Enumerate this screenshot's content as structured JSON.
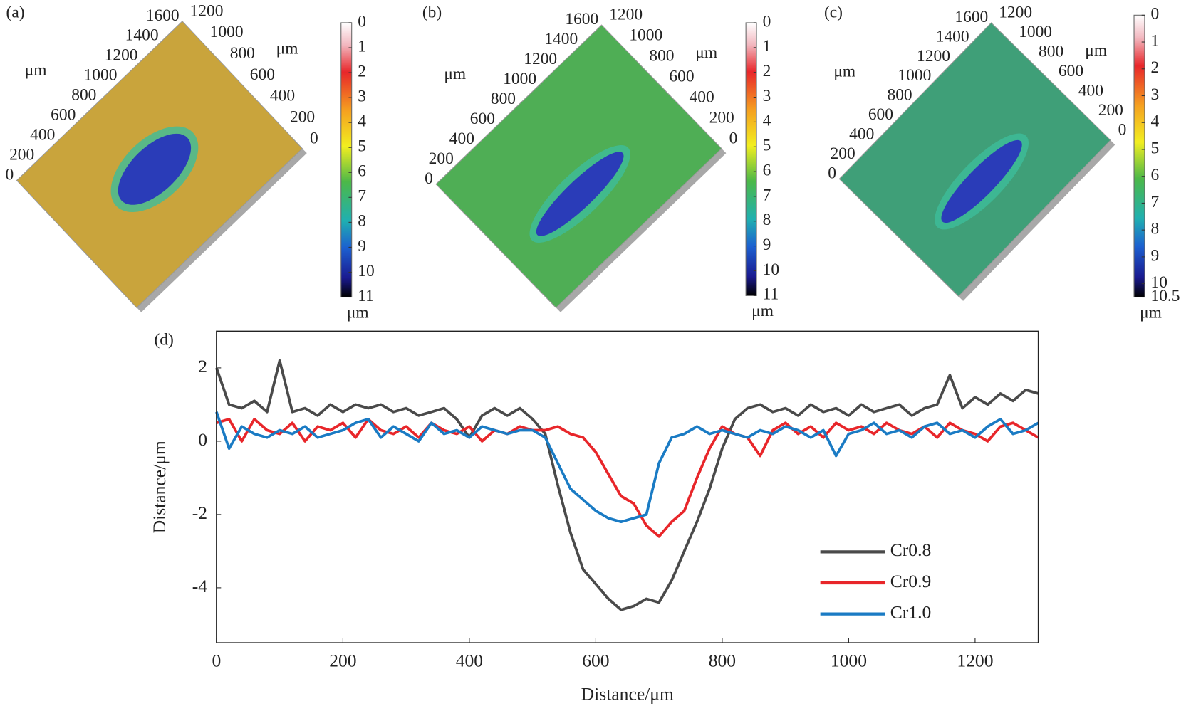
{
  "chart_data": [
    {
      "type": "surface-map",
      "label": "(a)",
      "x_label": "μm",
      "y_label": "μm",
      "color": "#c9a43c",
      "xlim": [
        0,
        1600
      ],
      "xticks": [
        0,
        200,
        400,
        600,
        800,
        1000,
        1200,
        1400,
        1600
      ],
      "ylim": [
        0,
        1200
      ],
      "yticks": [
        0,
        200,
        400,
        600,
        800,
        1000,
        1200
      ],
      "clim": [
        0,
        11
      ],
      "cticks": [
        0,
        1,
        2,
        3,
        4,
        5,
        6,
        7,
        8,
        9,
        10,
        11
      ],
      "colorbar_label": "μm"
    },
    {
      "type": "surface-map",
      "label": "(b)",
      "x_label": "μm",
      "y_label": "μm",
      "color": "#4fae55",
      "xlim": [
        0,
        1600
      ],
      "xticks": [
        0,
        200,
        400,
        600,
        800,
        1000,
        1200,
        1400,
        1600
      ],
      "ylim": [
        0,
        1200
      ],
      "yticks": [
        0,
        200,
        400,
        600,
        800,
        1000,
        1200
      ],
      "clim": [
        0,
        11
      ],
      "cticks": [
        0,
        1,
        2,
        3,
        4,
        5,
        6,
        7,
        8,
        9,
        10,
        11
      ],
      "colorbar_label": "μm"
    },
    {
      "type": "surface-map",
      "label": "(c)",
      "x_label": "μm",
      "y_label": "μm",
      "color": "#3f9f78",
      "xlim": [
        0,
        1600
      ],
      "xticks": [
        0,
        200,
        400,
        600,
        800,
        1000,
        1200,
        1400,
        1600
      ],
      "ylim": [
        0,
        1200
      ],
      "yticks": [
        0,
        200,
        400,
        600,
        800,
        1000,
        1200
      ],
      "clim": [
        0,
        10.5
      ],
      "cticks": [
        0,
        1,
        2,
        3,
        4,
        5,
        6,
        7,
        8,
        9,
        10,
        10.5
      ],
      "colorbar_label": "μm"
    },
    {
      "type": "line",
      "label": "(d)",
      "x_label": "Distance/μm",
      "y_label": "Distance/μm",
      "xlim": [
        0,
        1300
      ],
      "xticks": [
        0,
        200,
        400,
        600,
        800,
        1000,
        1200
      ],
      "ylim": [
        -5.5,
        3
      ],
      "yticks": [
        -4,
        -2,
        0,
        2
      ],
      "legend": "lower right",
      "x": [
        0,
        20,
        40,
        60,
        80,
        100,
        120,
        140,
        160,
        180,
        200,
        220,
        240,
        260,
        280,
        300,
        320,
        340,
        360,
        380,
        400,
        420,
        440,
        460,
        480,
        500,
        520,
        540,
        560,
        580,
        600,
        620,
        640,
        660,
        680,
        700,
        720,
        740,
        760,
        780,
        800,
        820,
        840,
        860,
        880,
        900,
        920,
        940,
        960,
        980,
        1000,
        1020,
        1040,
        1060,
        1080,
        1100,
        1120,
        1140,
        1160,
        1180,
        1200,
        1220,
        1240,
        1260,
        1280,
        1300
      ],
      "series": [
        {
          "name": "Cr0.8",
          "color": "#4a4a4a",
          "values": [
            2.0,
            1.0,
            0.9,
            1.1,
            0.8,
            2.2,
            0.8,
            0.9,
            0.7,
            1.0,
            0.8,
            1.0,
            0.9,
            1.0,
            0.8,
            0.9,
            0.7,
            0.8,
            0.9,
            0.6,
            0.1,
            0.7,
            0.9,
            0.7,
            0.9,
            0.6,
            0.2,
            -1.2,
            -2.5,
            -3.5,
            -3.9,
            -4.3,
            -4.6,
            -4.5,
            -4.3,
            -4.4,
            -3.8,
            -3.0,
            -2.2,
            -1.3,
            -0.2,
            0.6,
            0.9,
            1.0,
            0.8,
            0.9,
            0.7,
            1.0,
            0.8,
            0.9,
            0.7,
            1.0,
            0.8,
            0.9,
            1.0,
            0.7,
            0.9,
            1.0,
            1.8,
            0.9,
            1.2,
            1.0,
            1.3,
            1.1,
            1.4,
            1.3
          ]
        },
        {
          "name": "Cr0.9",
          "color": "#e8262a",
          "values": [
            0.5,
            0.6,
            0.0,
            0.6,
            0.3,
            0.2,
            0.5,
            0.0,
            0.4,
            0.3,
            0.5,
            0.1,
            0.6,
            0.3,
            0.2,
            0.4,
            0.1,
            0.5,
            0.3,
            0.2,
            0.4,
            0.0,
            0.3,
            0.2,
            0.4,
            0.3,
            0.3,
            0.4,
            0.2,
            0.1,
            -0.3,
            -0.9,
            -1.5,
            -1.7,
            -2.3,
            -2.6,
            -2.2,
            -1.9,
            -1.0,
            -0.2,
            0.4,
            0.2,
            0.1,
            -0.4,
            0.3,
            0.5,
            0.2,
            0.4,
            0.1,
            0.5,
            0.3,
            0.4,
            0.2,
            0.5,
            0.3,
            0.2,
            0.4,
            0.1,
            0.5,
            0.3,
            0.2,
            0.0,
            0.4,
            0.5,
            0.3,
            0.1
          ]
        },
        {
          "name": "Cr1.0",
          "color": "#1a7bc4",
          "values": [
            0.8,
            -0.2,
            0.4,
            0.2,
            0.1,
            0.3,
            0.2,
            0.4,
            0.1,
            0.2,
            0.3,
            0.5,
            0.6,
            0.1,
            0.4,
            0.2,
            0.0,
            0.5,
            0.2,
            0.3,
            0.1,
            0.4,
            0.3,
            0.2,
            0.3,
            0.3,
            0.1,
            -0.6,
            -1.3,
            -1.6,
            -1.9,
            -2.1,
            -2.2,
            -2.1,
            -2.0,
            -0.6,
            0.1,
            0.2,
            0.4,
            0.2,
            0.3,
            0.2,
            0.1,
            0.3,
            0.2,
            0.4,
            0.3,
            0.1,
            0.3,
            -0.4,
            0.2,
            0.3,
            0.5,
            0.2,
            0.3,
            0.1,
            0.4,
            0.5,
            0.2,
            0.3,
            0.1,
            0.4,
            0.6,
            0.2,
            0.3,
            0.5
          ]
        }
      ]
    }
  ]
}
